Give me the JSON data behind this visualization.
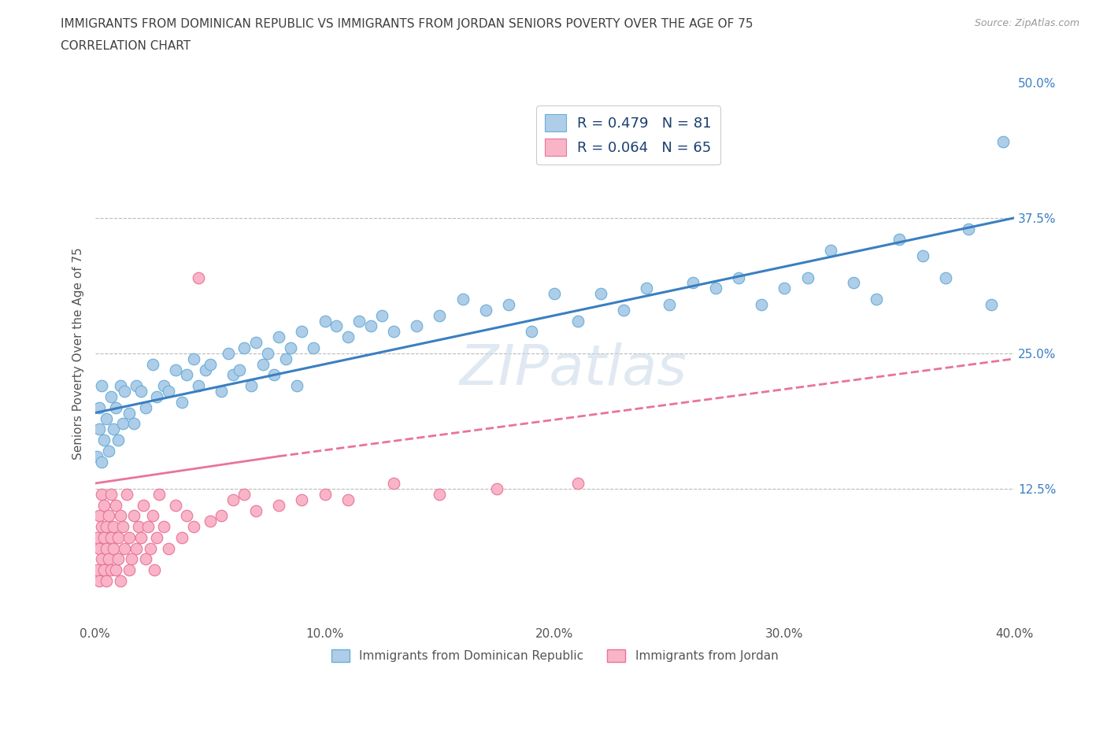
{
  "title_line1": "IMMIGRANTS FROM DOMINICAN REPUBLIC VS IMMIGRANTS FROM JORDAN SENIORS POVERTY OVER THE AGE OF 75",
  "title_line2": "CORRELATION CHART",
  "source": "Source: ZipAtlas.com",
  "ylabel": "Seniors Poverty Over the Age of 75",
  "xlim": [
    0.0,
    0.4
  ],
  "ylim": [
    0.0,
    0.5
  ],
  "xticks": [
    0.0,
    0.1,
    0.2,
    0.3,
    0.4
  ],
  "xticklabels": [
    "0.0%",
    "10.0%",
    "20.0%",
    "30.0%",
    "40.0%"
  ],
  "yticks": [
    0.0,
    0.125,
    0.25,
    0.375,
    0.5
  ],
  "yticklabels_left": [
    "",
    "",
    "",
    "",
    ""
  ],
  "yticklabels_right": [
    "",
    "12.5%",
    "25.0%",
    "37.5%",
    "50.0%"
  ],
  "hlines": [
    0.125,
    0.25,
    0.375
  ],
  "series1_color": "#aecde8",
  "series1_edge": "#6aaed6",
  "series2_color": "#f9b4c8",
  "series2_edge": "#e8749a",
  "trend1_color": "#3a7fc1",
  "trend2_color": "#e8749a",
  "legend_label1": "R = 0.479   N = 81",
  "legend_label2": "R = 0.064   N = 65",
  "scatter_label1": "Immigrants from Dominican Republic",
  "scatter_label2": "Immigrants from Jordan",
  "watermark": "ZIPatlas",
  "background_color": "#ffffff",
  "title_color": "#404040",
  "axis_text_color": "#555555",
  "right_axis_color": "#3a7fc1",
  "legend_text_color": "#1a3f6f",
  "series1_x": [
    0.001,
    0.002,
    0.002,
    0.003,
    0.003,
    0.004,
    0.005,
    0.006,
    0.007,
    0.008,
    0.009,
    0.01,
    0.011,
    0.012,
    0.013,
    0.015,
    0.017,
    0.018,
    0.02,
    0.022,
    0.025,
    0.027,
    0.03,
    0.032,
    0.035,
    0.038,
    0.04,
    0.043,
    0.045,
    0.048,
    0.05,
    0.055,
    0.058,
    0.06,
    0.063,
    0.065,
    0.068,
    0.07,
    0.073,
    0.075,
    0.078,
    0.08,
    0.083,
    0.085,
    0.088,
    0.09,
    0.095,
    0.1,
    0.105,
    0.11,
    0.115,
    0.12,
    0.125,
    0.13,
    0.14,
    0.15,
    0.16,
    0.17,
    0.18,
    0.19,
    0.2,
    0.21,
    0.22,
    0.23,
    0.24,
    0.25,
    0.26,
    0.27,
    0.28,
    0.29,
    0.3,
    0.31,
    0.32,
    0.33,
    0.34,
    0.35,
    0.36,
    0.37,
    0.38,
    0.39,
    0.395
  ],
  "series1_y": [
    0.155,
    0.18,
    0.2,
    0.15,
    0.22,
    0.17,
    0.19,
    0.16,
    0.21,
    0.18,
    0.2,
    0.17,
    0.22,
    0.185,
    0.215,
    0.195,
    0.185,
    0.22,
    0.215,
    0.2,
    0.24,
    0.21,
    0.22,
    0.215,
    0.235,
    0.205,
    0.23,
    0.245,
    0.22,
    0.235,
    0.24,
    0.215,
    0.25,
    0.23,
    0.235,
    0.255,
    0.22,
    0.26,
    0.24,
    0.25,
    0.23,
    0.265,
    0.245,
    0.255,
    0.22,
    0.27,
    0.255,
    0.28,
    0.275,
    0.265,
    0.28,
    0.275,
    0.285,
    0.27,
    0.275,
    0.285,
    0.3,
    0.29,
    0.295,
    0.27,
    0.305,
    0.28,
    0.305,
    0.29,
    0.31,
    0.295,
    0.315,
    0.31,
    0.32,
    0.295,
    0.31,
    0.32,
    0.345,
    0.315,
    0.3,
    0.355,
    0.34,
    0.32,
    0.365,
    0.295,
    0.445
  ],
  "series2_x": [
    0.001,
    0.001,
    0.002,
    0.002,
    0.002,
    0.003,
    0.003,
    0.003,
    0.004,
    0.004,
    0.004,
    0.005,
    0.005,
    0.005,
    0.006,
    0.006,
    0.007,
    0.007,
    0.007,
    0.008,
    0.008,
    0.009,
    0.009,
    0.01,
    0.01,
    0.011,
    0.011,
    0.012,
    0.013,
    0.014,
    0.015,
    0.015,
    0.016,
    0.017,
    0.018,
    0.019,
    0.02,
    0.021,
    0.022,
    0.023,
    0.024,
    0.025,
    0.026,
    0.027,
    0.028,
    0.03,
    0.032,
    0.035,
    0.038,
    0.04,
    0.043,
    0.045,
    0.05,
    0.055,
    0.06,
    0.065,
    0.07,
    0.08,
    0.09,
    0.1,
    0.11,
    0.13,
    0.15,
    0.175,
    0.21
  ],
  "series2_y": [
    0.08,
    0.05,
    0.07,
    0.1,
    0.04,
    0.09,
    0.06,
    0.12,
    0.08,
    0.05,
    0.11,
    0.07,
    0.04,
    0.09,
    0.06,
    0.1,
    0.05,
    0.08,
    0.12,
    0.07,
    0.09,
    0.05,
    0.11,
    0.08,
    0.06,
    0.1,
    0.04,
    0.09,
    0.07,
    0.12,
    0.05,
    0.08,
    0.06,
    0.1,
    0.07,
    0.09,
    0.08,
    0.11,
    0.06,
    0.09,
    0.07,
    0.1,
    0.05,
    0.08,
    0.12,
    0.09,
    0.07,
    0.11,
    0.08,
    0.1,
    0.09,
    0.32,
    0.095,
    0.1,
    0.115,
    0.12,
    0.105,
    0.11,
    0.115,
    0.12,
    0.115,
    0.13,
    0.12,
    0.125,
    0.13
  ]
}
